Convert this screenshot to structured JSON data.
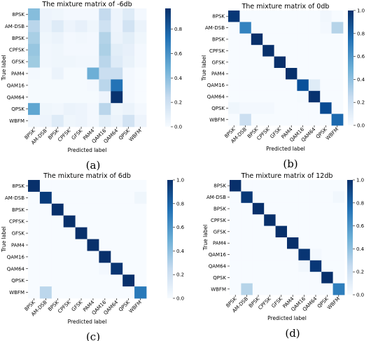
{
  "chart_data": [
    {
      "type": "heatmap",
      "title": "The mixture matrix of -6db",
      "panel_label": "(a)",
      "xlabel": "Predicted label",
      "ylabel": "True label",
      "labels": [
        "8PSK",
        "AM-DSB",
        "BPSK",
        "CPFSK",
        "GFSK",
        "PAM4",
        "QAM16",
        "QAM64",
        "QPSK",
        "WBFM"
      ],
      "colorbar": {
        "min": 0.0,
        "max": 0.97,
        "ticks": [
          0.0,
          0.2,
          0.4,
          0.6,
          0.8
        ]
      },
      "cmap": {
        "low": "#f7fbff",
        "high": "#08306b"
      },
      "matrix": [
        [
          0.42,
          0.05,
          0.04,
          0.02,
          0.02,
          0.02,
          0.25,
          0.05,
          0.12,
          0.02
        ],
        [
          0.28,
          0.06,
          0.12,
          0.05,
          0.08,
          0.04,
          0.2,
          0.05,
          0.18,
          0.06
        ],
        [
          0.33,
          0.04,
          0.06,
          0.02,
          0.03,
          0.02,
          0.3,
          0.06,
          0.1,
          0.04
        ],
        [
          0.38,
          0.03,
          0.04,
          0.02,
          0.02,
          0.02,
          0.32,
          0.1,
          0.08,
          0.02
        ],
        [
          0.36,
          0.03,
          0.04,
          0.04,
          0.03,
          0.03,
          0.28,
          0.12,
          0.07,
          0.02
        ],
        [
          0.02,
          0.01,
          0.06,
          0.01,
          0.01,
          0.48,
          0.22,
          0.22,
          0.02,
          0.0
        ],
        [
          0.01,
          0.01,
          0.01,
          0.01,
          0.01,
          0.02,
          0.28,
          0.72,
          0.02,
          0.0
        ],
        [
          0.01,
          0.01,
          0.01,
          0.01,
          0.01,
          0.01,
          0.05,
          0.96,
          0.02,
          0.0
        ],
        [
          0.52,
          0.04,
          0.03,
          0.06,
          0.05,
          0.02,
          0.28,
          0.04,
          0.06,
          0.02
        ],
        [
          0.03,
          0.05,
          0.12,
          0.04,
          0.05,
          0.02,
          0.1,
          0.06,
          0.18,
          0.05
        ]
      ]
    },
    {
      "type": "heatmap",
      "title": "The mixture matrix of 0db",
      "panel_label": "(b)",
      "xlabel": "Predicted label",
      "ylabel": "True label",
      "labels": [
        "8PSK",
        "AM-DSB",
        "BPSK",
        "CPFSK",
        "GFSK",
        "PAM4",
        "QAM16",
        "QAM64",
        "QPSK",
        "WBFM"
      ],
      "colorbar": {
        "min": 0.0,
        "max": 1.0,
        "ticks": [
          0.0,
          0.2,
          0.4,
          0.6,
          0.8,
          1.0
        ]
      },
      "cmap": {
        "low": "#f7fbff",
        "high": "#08306b"
      },
      "matrix": [
        [
          0.97,
          0.0,
          0.0,
          0.0,
          0.0,
          0.0,
          0.0,
          0.0,
          0.03,
          0.0
        ],
        [
          0.0,
          0.68,
          0.0,
          0.0,
          0.0,
          0.0,
          0.0,
          0.0,
          0.02,
          0.3
        ],
        [
          0.0,
          0.0,
          1.0,
          0.0,
          0.0,
          0.0,
          0.0,
          0.0,
          0.0,
          0.0
        ],
        [
          0.0,
          0.0,
          0.0,
          1.0,
          0.0,
          0.0,
          0.0,
          0.0,
          0.0,
          0.0
        ],
        [
          0.0,
          0.0,
          0.0,
          0.0,
          1.0,
          0.0,
          0.0,
          0.0,
          0.0,
          0.0
        ],
        [
          0.0,
          0.0,
          0.0,
          0.0,
          0.0,
          1.0,
          0.0,
          0.0,
          0.0,
          0.0
        ],
        [
          0.0,
          0.0,
          0.0,
          0.0,
          0.0,
          0.0,
          0.88,
          0.12,
          0.0,
          0.0
        ],
        [
          0.0,
          0.0,
          0.0,
          0.0,
          0.0,
          0.0,
          0.01,
          0.99,
          0.0,
          0.0
        ],
        [
          0.04,
          0.02,
          0.02,
          0.02,
          0.0,
          0.0,
          0.0,
          0.0,
          0.9,
          0.0
        ],
        [
          0.0,
          0.22,
          0.0,
          0.0,
          0.0,
          0.0,
          0.0,
          0.0,
          0.0,
          0.78
        ]
      ]
    },
    {
      "type": "heatmap",
      "title": "The mixture matrix of 6db",
      "panel_label": "(c)",
      "xlabel": "Predicted label",
      "ylabel": "True label",
      "labels": [
        "8PSK",
        "AM-DSB",
        "BPSK",
        "CPFSK",
        "GFSK",
        "PAM4",
        "QAM16",
        "QAM64",
        "QPSK",
        "WBFM"
      ],
      "colorbar": {
        "min": 0.0,
        "max": 1.0,
        "ticks": [
          0.0,
          0.2,
          0.4,
          0.6,
          0.8,
          1.0
        ]
      },
      "cmap": {
        "low": "#f7fbff",
        "high": "#08306b"
      },
      "matrix": [
        [
          1.0,
          0.0,
          0.0,
          0.0,
          0.0,
          0.0,
          0.0,
          0.0,
          0.0,
          0.0
        ],
        [
          0.0,
          0.96,
          0.0,
          0.0,
          0.0,
          0.0,
          0.0,
          0.0,
          0.0,
          0.04
        ],
        [
          0.0,
          0.0,
          1.0,
          0.0,
          0.0,
          0.0,
          0.0,
          0.0,
          0.0,
          0.0
        ],
        [
          0.0,
          0.0,
          0.0,
          1.0,
          0.0,
          0.0,
          0.0,
          0.0,
          0.0,
          0.0
        ],
        [
          0.0,
          0.0,
          0.0,
          0.0,
          1.0,
          0.0,
          0.0,
          0.0,
          0.0,
          0.0
        ],
        [
          0.0,
          0.0,
          0.0,
          0.0,
          0.0,
          1.0,
          0.0,
          0.0,
          0.0,
          0.0
        ],
        [
          0.0,
          0.0,
          0.0,
          0.0,
          0.0,
          0.0,
          1.0,
          0.0,
          0.0,
          0.0
        ],
        [
          0.0,
          0.0,
          0.0,
          0.0,
          0.0,
          0.0,
          0.02,
          0.98,
          0.0,
          0.0
        ],
        [
          0.0,
          0.0,
          0.0,
          0.0,
          0.0,
          0.0,
          0.0,
          0.0,
          1.0,
          0.0
        ],
        [
          0.0,
          0.28,
          0.0,
          0.0,
          0.0,
          0.0,
          0.0,
          0.0,
          0.0,
          0.72
        ]
      ]
    },
    {
      "type": "heatmap",
      "title": "The mixture matrix of 12db",
      "panel_label": "(d)",
      "xlabel": "Predicted label",
      "ylabel": "True label",
      "labels": [
        "8PSK",
        "AM-DSB",
        "BPSK",
        "CPFSK",
        "GFSK",
        "PAM4",
        "QAM16",
        "QAM64",
        "QPSK",
        "WBFM"
      ],
      "colorbar": {
        "min": 0.0,
        "max": 1.0,
        "ticks": [
          0.0,
          0.2,
          0.4,
          0.6,
          0.8,
          1.0
        ]
      },
      "cmap": {
        "low": "#f7fbff",
        "high": "#08306b"
      },
      "matrix": [
        [
          1.0,
          0.0,
          0.0,
          0.0,
          0.0,
          0.0,
          0.0,
          0.0,
          0.0,
          0.0
        ],
        [
          0.0,
          0.97,
          0.0,
          0.0,
          0.0,
          0.0,
          0.0,
          0.0,
          0.0,
          0.03
        ],
        [
          0.0,
          0.0,
          1.0,
          0.0,
          0.0,
          0.0,
          0.0,
          0.0,
          0.0,
          0.0
        ],
        [
          0.0,
          0.0,
          0.0,
          1.0,
          0.0,
          0.0,
          0.0,
          0.0,
          0.0,
          0.0
        ],
        [
          0.0,
          0.0,
          0.0,
          0.0,
          1.0,
          0.0,
          0.0,
          0.0,
          0.0,
          0.0
        ],
        [
          0.0,
          0.0,
          0.0,
          0.0,
          0.0,
          1.0,
          0.0,
          0.0,
          0.0,
          0.0
        ],
        [
          0.0,
          0.0,
          0.0,
          0.0,
          0.0,
          0.0,
          0.98,
          0.02,
          0.0,
          0.0
        ],
        [
          0.0,
          0.0,
          0.0,
          0.0,
          0.0,
          0.0,
          0.03,
          0.97,
          0.0,
          0.0
        ],
        [
          0.0,
          0.0,
          0.0,
          0.0,
          0.0,
          0.0,
          0.0,
          0.0,
          1.0,
          0.0
        ],
        [
          0.0,
          0.3,
          0.0,
          0.0,
          0.0,
          0.0,
          0.0,
          0.0,
          0.0,
          0.7
        ]
      ]
    }
  ]
}
